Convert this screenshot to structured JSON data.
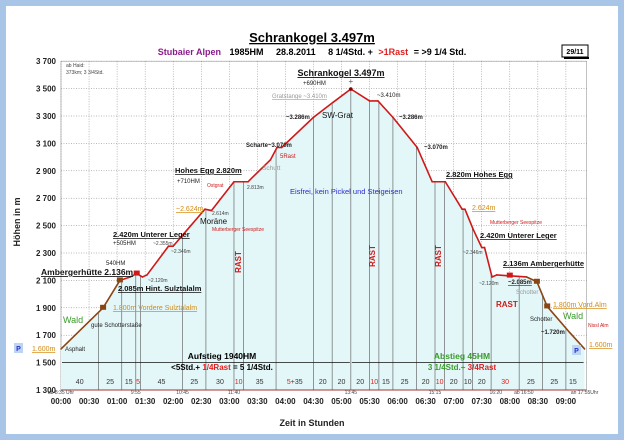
{
  "page_number": "29/11",
  "chart_data": {
    "type": "area",
    "title": "Schrankogel 3.497m",
    "subtitle": {
      "region": "Stubaier Alpen",
      "hm": "1985HM",
      "date": "28.8.2011",
      "time": "8 1/4Std. +",
      "rest": ">1Rast",
      "total": "= >9 1/4 Std."
    },
    "xlabel": "Zeit in Stunden",
    "ylabel": "Höhen in m",
    "ylim": [
      1300,
      3700
    ],
    "xlim": [
      "00:00",
      "09:20"
    ],
    "grid": true,
    "y_ticks": [
      "1 300",
      "1 500",
      "1 700",
      "1 900",
      "2 100",
      "2 300",
      "2 500",
      "2 700",
      "2 900",
      "3 100",
      "3 300",
      "3 500",
      "3 700"
    ],
    "x_ticks": [
      "00:00",
      "00:30",
      "01:00",
      "01:30",
      "02:00",
      "02:30",
      "03:00",
      "03:30",
      "04:00",
      "04:30",
      "05:00",
      "05:30",
      "06:00",
      "06:30",
      "07:00",
      "07:30",
      "08:00",
      "08:30",
      "09:00"
    ],
    "profile": [
      {
        "t": "00:00",
        "elev": 1600
      },
      {
        "t": "00:45",
        "elev": 1900
      },
      {
        "t": "01:03",
        "elev": 2100
      },
      {
        "t": "01:14",
        "elev": 2125
      },
      {
        "t": "01:21",
        "elev": 2150
      },
      {
        "t": "01:27",
        "elev": 2125
      },
      {
        "t": "01:32",
        "elev": 2140
      },
      {
        "t": "01:55",
        "elev": 2350
      },
      {
        "t": "02:00",
        "elev": 2350
      },
      {
        "t": "02:10",
        "elev": 2430
      },
      {
        "t": "02:34",
        "elev": 2620
      },
      {
        "t": "02:41",
        "elev": 2610
      },
      {
        "t": "03:05",
        "elev": 2820
      },
      {
        "t": "03:20",
        "elev": 2820
      },
      {
        "t": "03:44",
        "elev": 2980
      },
      {
        "t": "03:51",
        "elev": 3070
      },
      {
        "t": "03:56",
        "elev": 3070
      },
      {
        "t": "04:30",
        "elev": 3290
      },
      {
        "t": "04:51",
        "elev": 3400
      },
      {
        "t": "05:10",
        "elev": 3497
      },
      {
        "t": "05:30",
        "elev": 3410
      },
      {
        "t": "05:39",
        "elev": 3410
      },
      {
        "t": "05:55",
        "elev": 3290
      },
      {
        "t": "06:21",
        "elev": 3070
      },
      {
        "t": "06:37",
        "elev": 2820
      },
      {
        "t": "06:51",
        "elev": 2820
      },
      {
        "t": "07:09",
        "elev": 2620
      },
      {
        "t": "07:12",
        "elev": 2620
      },
      {
        "t": "07:21",
        "elev": 2470
      },
      {
        "t": "07:30",
        "elev": 2340
      },
      {
        "t": "07:33",
        "elev": 2340
      },
      {
        "t": "07:41",
        "elev": 2125
      },
      {
        "t": "07:46",
        "elev": 2140
      },
      {
        "t": "08:18",
        "elev": 2125
      },
      {
        "t": "08:29",
        "elev": 2090
      },
      {
        "t": "08:40",
        "elev": 1910
      },
      {
        "t": "09:04",
        "elev": 1720
      },
      {
        "t": "09:20",
        "elev": 1600
      }
    ],
    "segments": [
      {
        "label": "40",
        "rest": false
      },
      {
        "label": "25",
        "rest": false
      },
      {
        "label": "15",
        "rest": false
      },
      {
        "label": "5",
        "rest": true
      },
      {
        "label": "45",
        "rest": false
      },
      {
        "label": "25",
        "rest": false
      },
      {
        "label": "30",
        "rest": false
      },
      {
        "label": "10",
        "rest": true
      },
      {
        "label": "35",
        "rest": false
      },
      {
        "label": "5",
        "rest": true,
        "extra": "+35"
      },
      {
        "label": "20",
        "rest": false
      },
      {
        "label": "20",
        "rest": false
      },
      {
        "label": "20",
        "rest": false
      },
      {
        "label": "10",
        "rest": true
      },
      {
        "label": "15",
        "rest": false
      },
      {
        "label": "25",
        "rest": false
      },
      {
        "label": "20",
        "rest": false
      },
      {
        "label": "10",
        "rest": true
      },
      {
        "label": "20",
        "rest": false
      },
      {
        "label": "10",
        "rest": false
      },
      {
        "label": "20",
        "rest": false
      },
      {
        "label": "30",
        "rest": true
      },
      {
        "label": "25",
        "rest": false
      },
      {
        "label": "25",
        "rest": false
      },
      {
        "label": "15",
        "rest": false
      }
    ],
    "segment_minutes": [
      40,
      25,
      15,
      5,
      45,
      25,
      30,
      10,
      35,
      40,
      20,
      20,
      20,
      10,
      15,
      25,
      20,
      10,
      20,
      10,
      20,
      30,
      25,
      25,
      15
    ],
    "clock_labels": [
      {
        "t": "00:00",
        "text": "ab 8:35 Uhr"
      },
      {
        "t": "01:20",
        "text": "9:55"
      },
      {
        "t": "02:10",
        "text": "10:45"
      },
      {
        "t": "03:05",
        "text": "11:40"
      },
      {
        "t": "05:10",
        "text": "13:45"
      },
      {
        "t": "06:40",
        "text": "15:15"
      },
      {
        "t": "07:45",
        "text": "16:20"
      },
      {
        "t": "08:15",
        "text": "ab 16:50"
      },
      {
        "t": "09:20",
        "text": "an 17:55Uhr"
      }
    ],
    "colors": {
      "trail": "#d01818",
      "road": "#8b4513",
      "fill": "#e3f6f8",
      "rest": "#e02020",
      "ascent": "#111111",
      "descent": "#2a9a2a"
    }
  },
  "summary": {
    "ascent_title": "Aufstieg 1940HM",
    "ascent_time": "<5Std.+",
    "ascent_rest": "1/4Rast",
    "ascent_total": "= 5 1/4Std.",
    "descent_title": "Abstieg 45HM",
    "descent_time": "3 1/4Std.+",
    "descent_rest": "3/4Rast"
  },
  "annotations": {
    "from_haid_1": "ab Haid:",
    "from_haid_2": "373km; 3 3/4Std.",
    "summit": "Schrankogel 3.497m",
    "summit_hm": "+690HM",
    "gratstange": "Gratstange ~3.410m",
    "r3410": "~3.410m",
    "l3286": "~3.286m",
    "swgrat": "SW-Grat",
    "r3286": "~3.286m",
    "scharte": "Scharte~3.070m",
    "rast5": "5Rast",
    "r3070": "~3.070m",
    "schutt": "Schutt",
    "eisfrei": "Eisfrei, kein Pickel und Steigeisen",
    "hohesegg": "Hohes Egg 2.820m",
    "hohesegg_hm": "+710HM",
    "r_hohesegg": "2.820m Hohes Egg",
    "ostgrat": "Ostgrat",
    "m2813": "2.813m",
    "l2624": "~2.624m",
    "m2614": "2.614m",
    "moraene": "Moräne",
    "r2624": "2.624m",
    "mutt_l": "Mutterberger Seespitze",
    "mutt_r": "Mutterberger Seespitze",
    "leger_l": "2.420m Unterer Leger",
    "leger_hm": "+505HM",
    "leger_r": "2.420m Unterer Leger",
    "l2355": "~2.355m",
    "l2346": "~2.346m",
    "r2346": "~2.346m",
    "hm540": "540HM",
    "amberger_l": "Ambergerhütte 2.136m",
    "l2120": "~2.120m",
    "r2120": "~2.120m",
    "hint": "2.085m Hint. Sulztalalm",
    "amberger_r": "2.136m Ambergerhütte",
    "r2085": "~2.085m",
    "schotter_r": "Schotter",
    "rast": "RAST",
    "vordere_l": "1.800m Vordere Sulztalalm",
    "vordere_r": "1.800m Vord.Alm",
    "wald": "Wald",
    "schotterstrasse": "gute Schotterstaße",
    "schotter": "Schotter",
    "nissl": "Nissl Alm",
    "r1720": "~1.720m",
    "asphalt": "Asphalt",
    "m1600": "1.600m",
    "parking": "P"
  }
}
